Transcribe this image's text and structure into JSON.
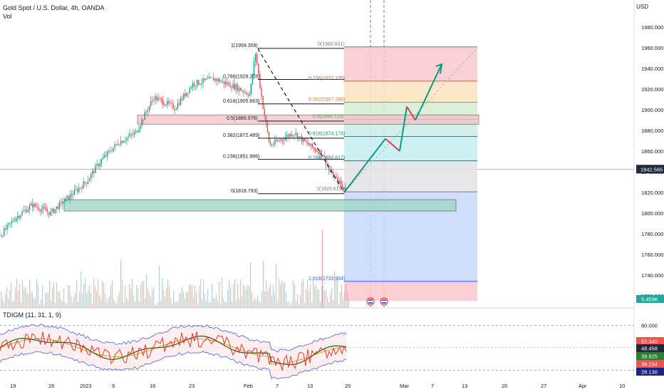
{
  "header": {
    "symbol_title": "Gold Spot / U.S. Dollar, 4h, OANDA",
    "vol_label": "Vol",
    "currency": "USD",
    "indicator_title": "TDIGM (11, 31, 1, 9)"
  },
  "price_axis": {
    "ticks": [
      "1980.000",
      "1960.000",
      "1940.000",
      "1920.000",
      "1900.000",
      "1880.000",
      "1860.000",
      "1840.000",
      "1820.000",
      "1800.000",
      "1780.000",
      "1760.000",
      "1740.000",
      "1720.000"
    ],
    "current_price": "1842.565",
    "volume_label": "5.459K",
    "price_color": "#1e2a3a",
    "volume_color": "#26a69a"
  },
  "indicator_axis": {
    "ticks": [
      "80.000",
      "20.000"
    ],
    "badges": [
      {
        "value": "52.340",
        "color": "#ef5350"
      },
      {
        "value": "48.458",
        "color": "#1e2a3a"
      },
      {
        "value": "39.925",
        "color": "#2e7d32"
      },
      {
        "value": "38.294",
        "color": "#ef5350"
      },
      {
        "value": "28.130",
        "color": "#1a237e"
      }
    ]
  },
  "time_axis": {
    "labels": [
      "19",
      "26",
      "2023",
      "9",
      "16",
      "23",
      "Feb",
      "7",
      "13",
      "20",
      "Mar",
      "7",
      "13",
      "20",
      "27",
      "Apr",
      "10"
    ]
  },
  "fib_left": {
    "labels": [
      "1(1959.359)",
      "0.786(1929.278)",
      "0.618(1905.663)",
      "0.5(1889.076)",
      "0.382(1872.489)",
      "0.236(1851.966)",
      "0(1818.793)"
    ]
  },
  "fib_right": {
    "labels": [
      "0(1960.831)",
      "0.236(1927.739)",
      "0.382(1907.266)",
      "0.5(1890.720)",
      "0.618(1874.174)",
      "0.786(1850.617)",
      "1(1820.610)",
      "1.618(1733.954)"
    ],
    "colors": [
      "#787b86",
      "#ef5350",
      "#f57c00",
      "#4caf50",
      "#089981",
      "#00897b",
      "#787b86",
      "#2962ff"
    ]
  }
}
